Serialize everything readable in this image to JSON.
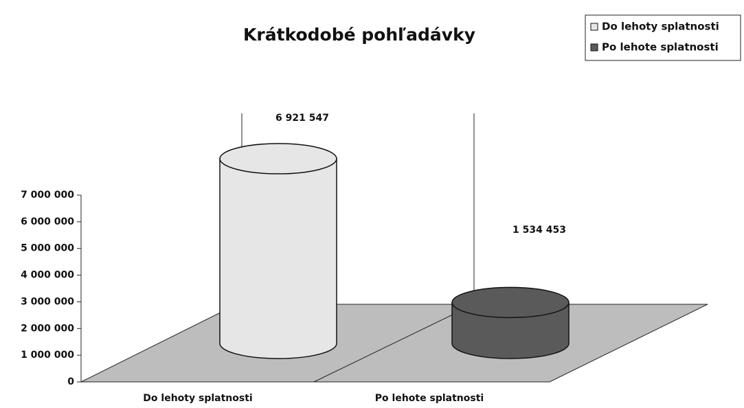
{
  "chart_data": {
    "type": "cylinder3d",
    "title": "Krátkodobé pohľadávky",
    "categories": [
      "Do lehoty splatnosti",
      "Po lehote splatnosti"
    ],
    "series": [
      {
        "name": "Do lehoty splatnosti",
        "color": "#e6e6e6",
        "values": [
          6921547,
          null
        ],
        "value_labels": [
          "6 921 547",
          null
        ]
      },
      {
        "name": "Po lehote splatnosti",
        "color": "#5a5a5a",
        "values": [
          null,
          1534453
        ],
        "value_labels": [
          null,
          "1 534 453"
        ]
      }
    ],
    "ylim": [
      0,
      7000000
    ],
    "yticks": [
      0,
      {
        "value": 1000000,
        "label": "1 000 000"
      },
      {
        "value": 2000000,
        "label": "2 000 000"
      },
      {
        "value": 3000000,
        "label": "3 000 000"
      },
      {
        "value": 4000000,
        "label": "4 000 000"
      },
      {
        "value": 5000000,
        "label": "5 000 000"
      },
      {
        "value": 6000000,
        "label": "6 000 000"
      },
      {
        "value": 7000000,
        "label": "7 000 000"
      }
    ],
    "legend": "top-right"
  }
}
